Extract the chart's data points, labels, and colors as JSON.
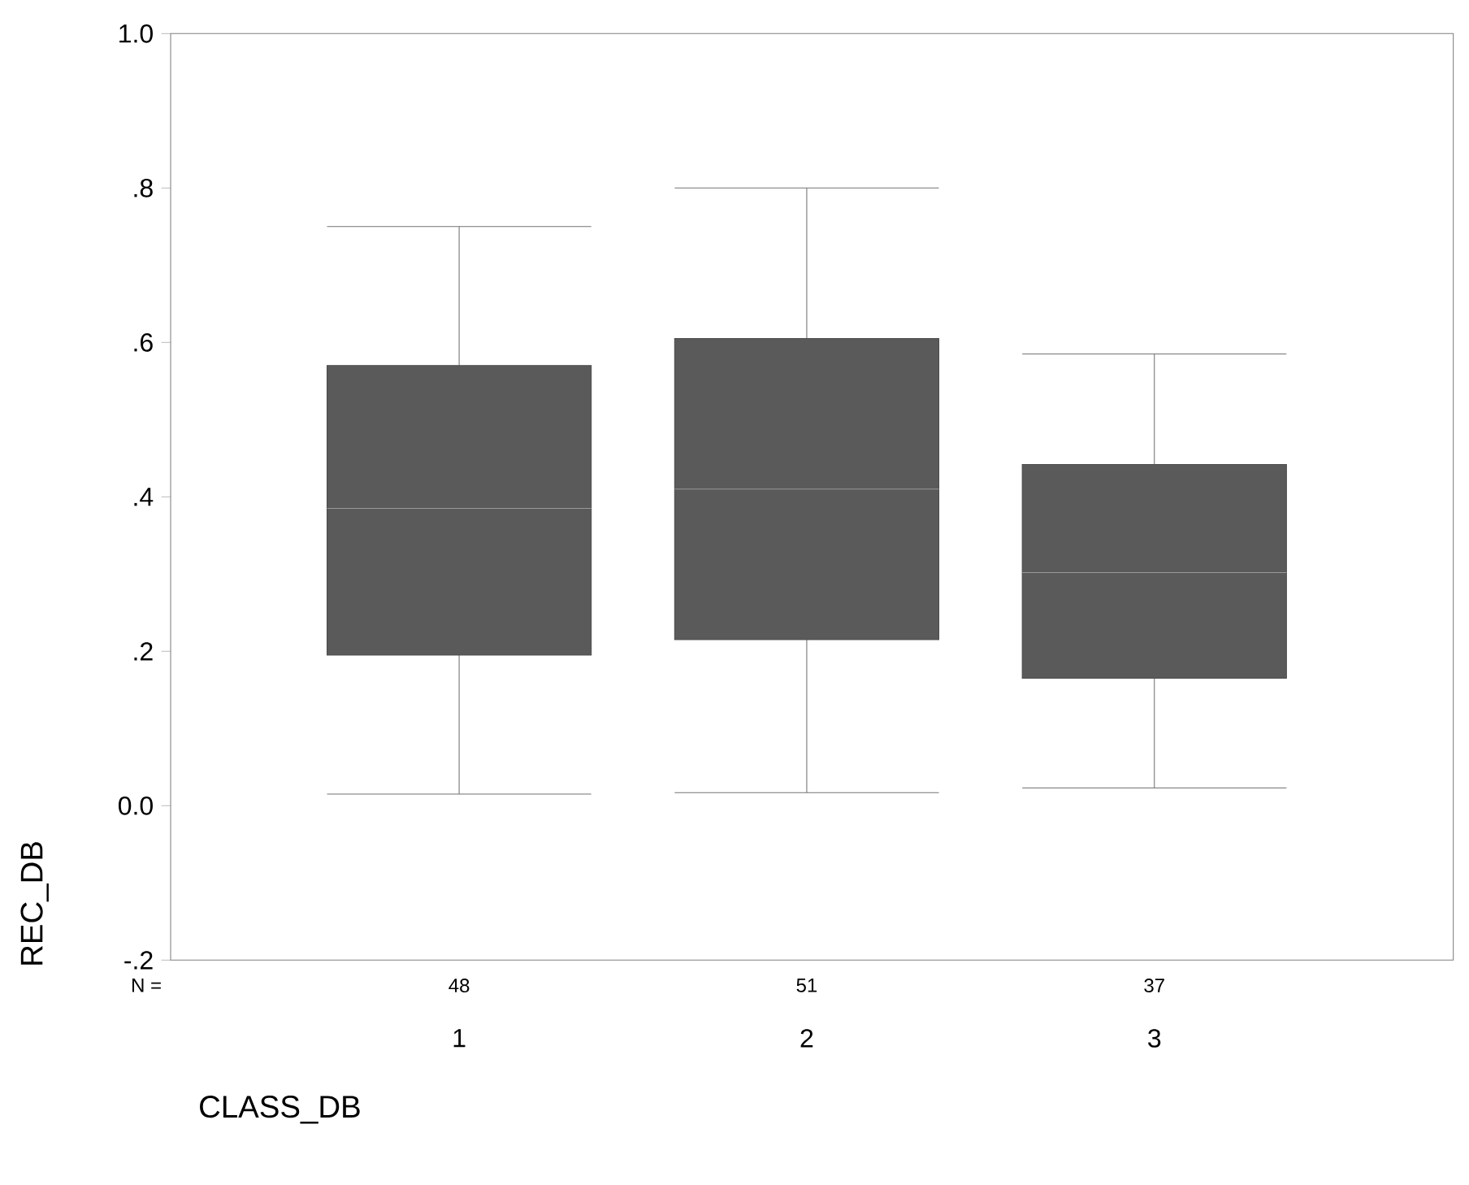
{
  "chart_data": {
    "type": "box",
    "xlabel": "CLASS_DB",
    "ylabel": "REC_DB",
    "categories": [
      "1",
      "2",
      "3"
    ],
    "color": "#5a5a5a",
    "boxes": [
      {
        "low": 0.015,
        "q1": 0.195,
        "median": 0.385,
        "q3": 0.57,
        "high": 0.75
      },
      {
        "low": 0.017,
        "q1": 0.215,
        "median": 0.41,
        "q3": 0.605,
        "high": 0.8
      },
      {
        "low": 0.023,
        "q1": 0.165,
        "median": 0.302,
        "q3": 0.442,
        "high": 0.585
      }
    ],
    "ylim": [
      -0.2,
      1.0
    ],
    "yticks": [
      {
        "value": -0.2,
        "label": "-.2"
      },
      {
        "value": 0.0,
        "label": "0.0"
      },
      {
        "value": 0.2,
        "label": ".2"
      },
      {
        "value": 0.4,
        "label": ".4"
      },
      {
        "value": 0.6,
        "label": ".6"
      },
      {
        "value": 0.8,
        "label": ".8"
      },
      {
        "value": 1.0,
        "label": "1.0"
      }
    ],
    "annotations": [
      "N =",
      "48",
      "51",
      "37"
    ],
    "grid": false
  }
}
